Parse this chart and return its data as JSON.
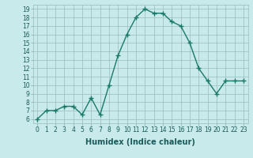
{
  "x": [
    0,
    1,
    2,
    3,
    4,
    5,
    6,
    7,
    8,
    9,
    10,
    11,
    12,
    13,
    14,
    15,
    16,
    17,
    18,
    19,
    20,
    21,
    22,
    23
  ],
  "y": [
    6,
    7,
    7,
    7.5,
    7.5,
    6.5,
    8.5,
    6.5,
    10,
    13.5,
    16,
    18,
    19,
    18.5,
    18.5,
    17.5,
    17,
    15,
    12,
    10.5,
    9,
    10.5,
    10.5,
    10.5
  ],
  "line_color": "#1a7a6a",
  "marker": "+",
  "marker_size": 4,
  "bg_color": "#c8eaea",
  "grid_color": "#9bbcbc",
  "xlabel": "Humidex (Indice chaleur)",
  "xlim": [
    -0.5,
    23.5
  ],
  "ylim": [
    5.5,
    19.5
  ],
  "yticks": [
    6,
    7,
    8,
    9,
    10,
    11,
    12,
    13,
    14,
    15,
    16,
    17,
    18,
    19
  ],
  "xticks": [
    0,
    1,
    2,
    3,
    4,
    5,
    6,
    7,
    8,
    9,
    10,
    11,
    12,
    13,
    14,
    15,
    16,
    17,
    18,
    19,
    20,
    21,
    22,
    23
  ],
  "font_color": "#1a5a5a",
  "line_width": 1.0,
  "tick_fontsize": 5.5,
  "xlabel_fontsize": 7.0
}
